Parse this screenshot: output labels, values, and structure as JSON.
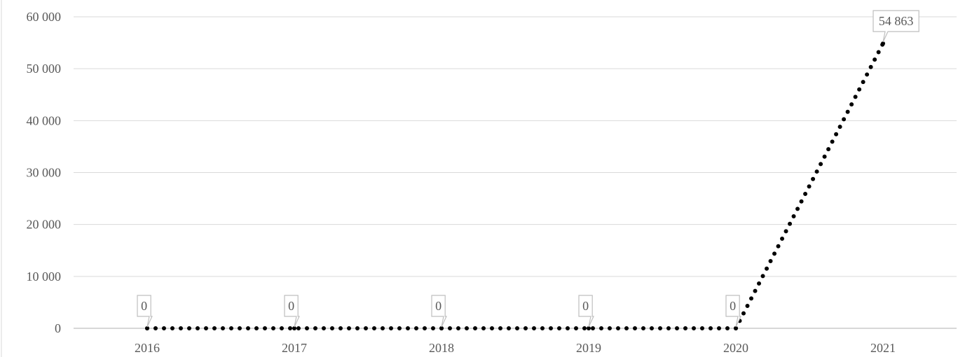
{
  "chart_data": {
    "type": "line",
    "categories": [
      "2016",
      "2017",
      "2018",
      "2019",
      "2020",
      "2021"
    ],
    "series": [
      {
        "values": [
          0,
          0,
          0,
          0,
          0,
          54863
        ]
      }
    ],
    "data_labels": [
      "0",
      "0",
      "0",
      "0",
      "0",
      "54 863"
    ],
    "y_ticks": [
      0,
      10000,
      20000,
      30000,
      40000,
      50000,
      60000
    ],
    "y_tick_labels": [
      "0",
      "10 000",
      "20 000",
      "30 000",
      "40 000",
      "50 000",
      "60 000"
    ],
    "ylim": [
      0,
      60000
    ],
    "grid": true,
    "legend": false,
    "line_style": "dotted",
    "colors": {
      "line": "#000000",
      "grid": "#d9d9d9",
      "text": "#595959",
      "callout_border": "#bfbfbf"
    }
  }
}
